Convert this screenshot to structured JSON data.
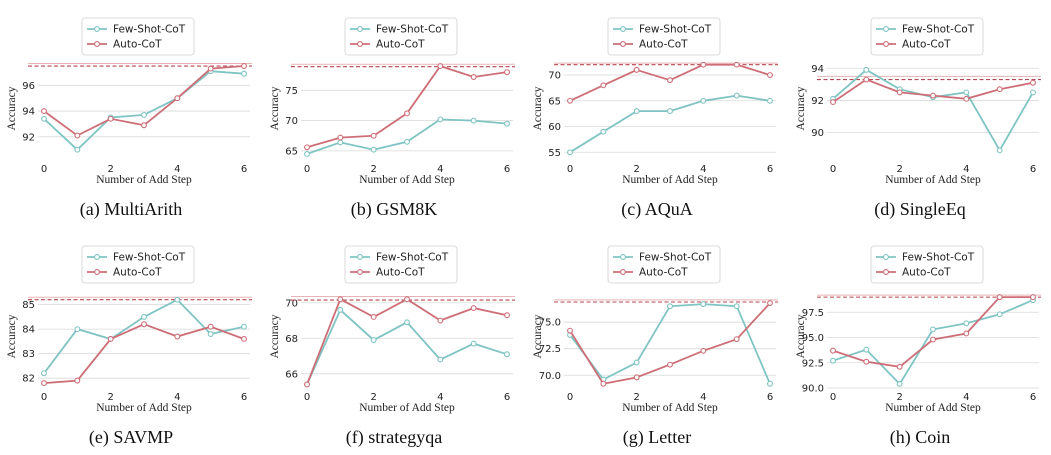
{
  "legend": {
    "few_shot": "Few-Shot-CoT",
    "auto": "Auto-CoT"
  },
  "colors": {
    "few_shot": "#7fc4c3",
    "auto": "#cd6e77",
    "ref": "#b5474f",
    "grid": "#d9d9d9"
  },
  "chart_data": [
    {
      "type": "line",
      "caption": "(a)  MultiArith",
      "xlabel": "Number of Add Step",
      "ylabel": "Accuracy",
      "x": [
        0,
        1,
        2,
        3,
        4,
        5,
        6
      ],
      "xticks": [
        0,
        2,
        4,
        6
      ],
      "ylim": [
        90.2,
        98.2
      ],
      "yticks": [
        92,
        94,
        96
      ],
      "series": [
        {
          "name": "Few-Shot-CoT",
          "values": [
            93.4,
            91.0,
            93.5,
            93.7,
            95.0,
            97.1,
            96.9
          ]
        },
        {
          "name": "Auto-CoT",
          "values": [
            94.0,
            92.1,
            93.4,
            92.9,
            95.0,
            97.3,
            97.5
          ]
        }
      ],
      "reference": [
        97.7,
        97.5
      ]
    },
    {
      "type": "line",
      "caption": "(b)  GSM8K",
      "xlabel": "Number of Add Step",
      "ylabel": "Accuracy",
      "x": [
        0,
        1,
        2,
        3,
        4,
        5,
        6
      ],
      "xticks": [
        0,
        2,
        4,
        6
      ],
      "ylim": [
        63.5,
        80.5
      ],
      "yticks": [
        65,
        70,
        75
      ],
      "series": [
        {
          "name": "Few-Shot-CoT",
          "values": [
            64.5,
            66.4,
            65.2,
            66.5,
            70.2,
            70.0,
            69.5
          ]
        },
        {
          "name": "Auto-CoT",
          "values": [
            65.6,
            67.2,
            67.5,
            71.2,
            79.0,
            77.2,
            78.0
          ]
        }
      ],
      "reference": [
        79.3,
        78.9
      ]
    },
    {
      "type": "line",
      "caption": "(c)  AQuA",
      "xlabel": "Number of Add Step",
      "ylabel": "Accuracy",
      "x": [
        0,
        1,
        2,
        3,
        4,
        5,
        6
      ],
      "xticks": [
        0,
        2,
        4,
        6
      ],
      "ylim": [
        53.5,
        73.5
      ],
      "yticks": [
        55,
        60,
        65,
        70
      ],
      "series": [
        {
          "name": "Few-Shot-CoT",
          "values": [
            55.0,
            59.0,
            63.0,
            63.0,
            65.0,
            66.0,
            65.0
          ]
        },
        {
          "name": "Auto-CoT",
          "values": [
            65.0,
            68.0,
            71.0,
            69.0,
            72.0,
            72.0,
            70.0
          ]
        }
      ],
      "reference": [
        72.3,
        72.0
      ]
    },
    {
      "type": "line",
      "caption": "(d)  SingleEq",
      "xlabel": "Number of Add Step",
      "ylabel": "Accuracy",
      "x": [
        0,
        1,
        2,
        3,
        4,
        5,
        6
      ],
      "xticks": [
        0,
        2,
        4,
        6
      ],
      "ylim": [
        88.3,
        94.7
      ],
      "yticks": [
        90,
        92,
        94
      ],
      "series": [
        {
          "name": "Few-Shot-CoT",
          "values": [
            92.1,
            93.9,
            92.7,
            92.2,
            92.5,
            88.9,
            92.5
          ]
        },
        {
          "name": "Auto-CoT",
          "values": [
            91.9,
            93.3,
            92.5,
            92.3,
            92.1,
            92.7,
            93.1
          ]
        }
      ],
      "reference": [
        93.5,
        93.3
      ]
    },
    {
      "type": "line",
      "caption": "(e)  SAVMP",
      "xlabel": "Number of Add Step",
      "ylabel": "Accuracy",
      "x": [
        0,
        1,
        2,
        3,
        4,
        5,
        6
      ],
      "xticks": [
        0,
        2,
        4,
        6
      ],
      "ylim": [
        81.6,
        85.8
      ],
      "yticks": [
        82,
        83,
        84,
        85
      ],
      "series": [
        {
          "name": "Few-Shot-CoT",
          "values": [
            82.2,
            84.0,
            83.6,
            84.5,
            85.2,
            83.8,
            84.1
          ]
        },
        {
          "name": "Auto-CoT",
          "values": [
            81.8,
            81.9,
            83.6,
            84.2,
            83.7,
            84.1,
            83.6
          ]
        }
      ],
      "reference": [
        85.3,
        85.2
      ]
    },
    {
      "type": "line",
      "caption": "(f)  strategyqa",
      "xlabel": "Number of Add Step",
      "ylabel": "Accuracy",
      "x": [
        0,
        1,
        2,
        3,
        4,
        5,
        6
      ],
      "xticks": [
        0,
        2,
        4,
        6
      ],
      "ylim": [
        65.2,
        71.0
      ],
      "yticks": [
        66,
        68,
        70
      ],
      "series": [
        {
          "name": "Few-Shot-CoT",
          "values": [
            65.4,
            69.6,
            67.9,
            68.9,
            66.8,
            67.7,
            67.1
          ]
        },
        {
          "name": "Auto-CoT",
          "values": [
            65.4,
            70.2,
            69.2,
            70.2,
            69.0,
            69.7,
            69.3
          ]
        }
      ],
      "reference": [
        70.35,
        70.15
      ]
    },
    {
      "type": "line",
      "caption": "(g)  Letter",
      "xlabel": "Number of Add Step",
      "ylabel": "Accuracy",
      "x": [
        0,
        1,
        2,
        3,
        4,
        5,
        6
      ],
      "xticks": [
        0,
        2,
        4,
        6
      ],
      "ylim": [
        68.8,
        78.5
      ],
      "yticks": [
        70.0,
        72.5,
        75.0
      ],
      "series": [
        {
          "name": "Few-Shot-CoT",
          "values": [
            73.8,
            69.6,
            71.2,
            76.5,
            76.7,
            76.5,
            69.2
          ]
        },
        {
          "name": "Auto-CoT",
          "values": [
            74.2,
            69.2,
            69.8,
            71.0,
            72.3,
            73.4,
            76.8
          ]
        }
      ],
      "reference": [
        77.1,
        76.9
      ]
    },
    {
      "type": "line",
      "caption": "(h)  Coin",
      "xlabel": "Number of Add Step",
      "ylabel": "Accuracy",
      "x": [
        0,
        1,
        2,
        3,
        4,
        5,
        6
      ],
      "xticks": [
        0,
        2,
        4,
        6
      ],
      "ylim": [
        90.0,
        100.2
      ],
      "yticks": [
        90.0,
        92.5,
        95.0,
        97.5
      ],
      "series": [
        {
          "name": "Few-Shot-CoT",
          "values": [
            92.7,
            93.8,
            90.4,
            95.8,
            96.4,
            97.3,
            98.7
          ]
        },
        {
          "name": "Auto-CoT",
          "values": [
            93.7,
            92.6,
            92.1,
            94.8,
            95.4,
            99.0,
            99.0
          ]
        }
      ],
      "reference": [
        99.2,
        99.0
      ]
    }
  ]
}
